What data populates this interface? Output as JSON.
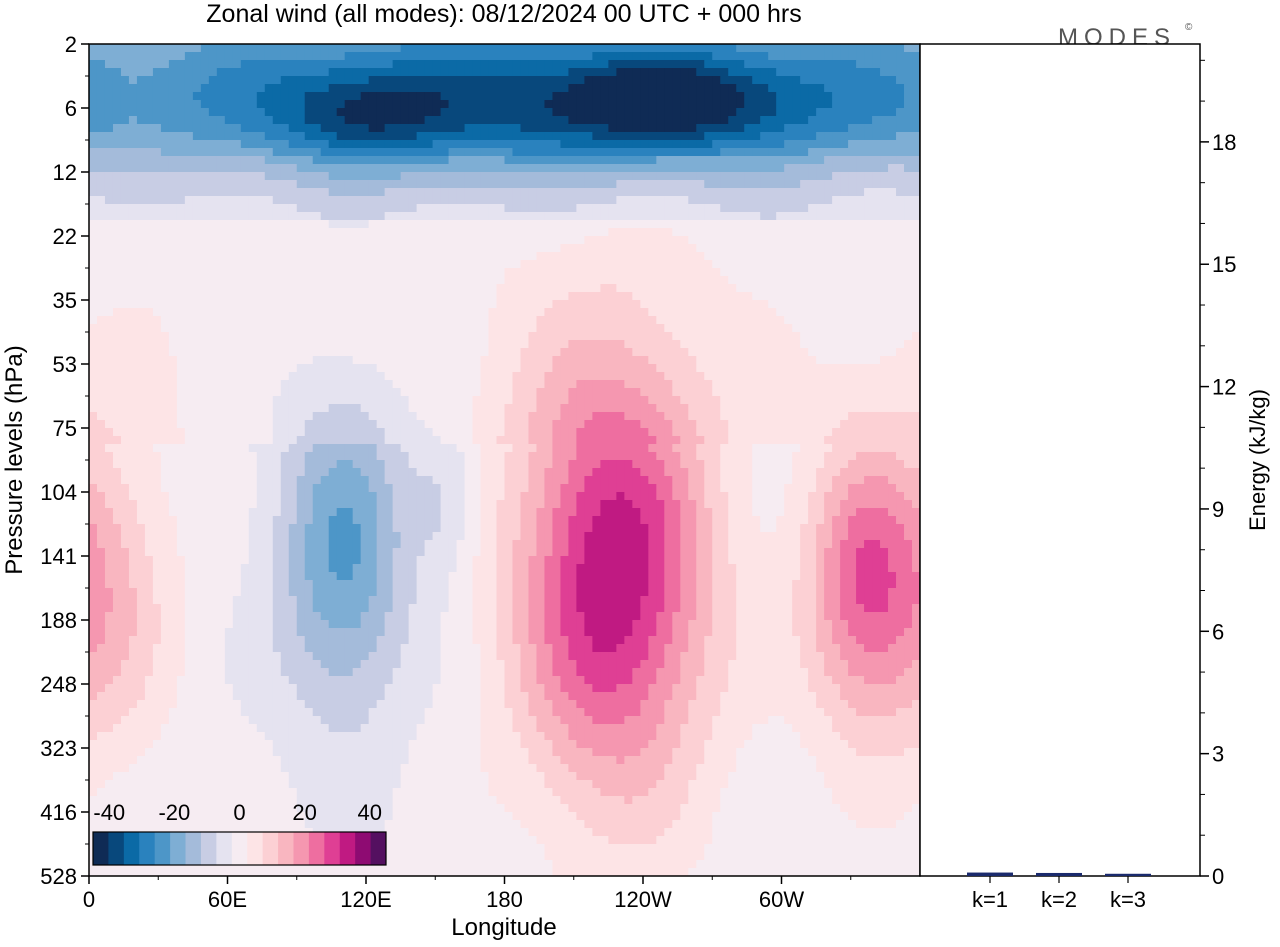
{
  "title": "Zonal wind (all modes):  08/12/2024  00 UTC  + 000 hrs",
  "logo_text": "MODES",
  "logo_mark": "©",
  "chart_data": [
    {
      "type": "heatmap",
      "xlabel": "Longitude",
      "ylabel": "Pressure levels (hPa)",
      "x_ticks": [
        "0",
        "60E",
        "120E",
        "180",
        "120W",
        "60W"
      ],
      "x_tick_degrees": [
        0,
        60,
        120,
        180,
        240,
        300
      ],
      "x_range_degrees": [
        0,
        360
      ],
      "y_ticks": [
        "2",
        "6",
        "12",
        "22",
        "35",
        "53",
        "75",
        "104",
        "141",
        "188",
        "248",
        "323",
        "416",
        "528"
      ],
      "colorbar": {
        "tick_labels": [
          "-40",
          "-20",
          "0",
          "20",
          "40"
        ],
        "tick_values": [
          -40,
          -20,
          0,
          20,
          40
        ],
        "range": [
          -45,
          45
        ],
        "step": 5,
        "colors": [
          "#0f2b55",
          "#08487c",
          "#0b6aa6",
          "#2a82be",
          "#4d96c8",
          "#7eaed4",
          "#a4bbda",
          "#c8cde4",
          "#e5e3f0",
          "#f6ecf2",
          "#fde4e6",
          "#fcd0d4",
          "#f9b6c0",
          "#f597b0",
          "#ee6ea0",
          "#df3f94",
          "#c01a82",
          "#8e0b72",
          "#541060"
        ]
      },
      "features": [
        {
          "label": "easterly band (upper stratosphere)",
          "lon": 200,
          "level_index": 1.0,
          "value": -32,
          "spread_lon": 150,
          "spread_level": 0.8
        },
        {
          "label": "easterly core",
          "lon": 250,
          "level_index": 0.9,
          "value": -14,
          "spread_lon": 30,
          "spread_level": 0.5
        },
        {
          "label": "easterly core",
          "lon": 120,
          "level_index": 1.2,
          "value": -10,
          "spread_lon": 25,
          "spread_level": 0.5
        },
        {
          "label": "westerly jet core",
          "lon": 227,
          "level_index": 8.3,
          "value": 38,
          "spread_lon": 30,
          "spread_level": 2.4
        },
        {
          "label": "westerly maximum",
          "lon": 335,
          "level_index": 8.5,
          "value": 26,
          "spread_lon": 18,
          "spread_level": 1.6
        },
        {
          "label": "westerly maximum",
          "lon": 8,
          "level_index": 8.5,
          "value": 14,
          "spread_lon": 20,
          "spread_level": 1.8
        },
        {
          "label": "easterly tongue",
          "lon": 110,
          "level_index": 8.0,
          "value": -22,
          "spread_lon": 20,
          "spread_level": 1.8
        },
        {
          "label": "easterly tongue",
          "lon": 155,
          "level_index": 7.2,
          "value": -8,
          "spread_lon": 10,
          "spread_level": 0.8
        }
      ]
    },
    {
      "type": "bar",
      "ylabel": "Energy (kJ/kg)",
      "categories": [
        "k=1",
        "k=2",
        "k=3"
      ],
      "values": [
        0.06,
        0.05,
        0.03
      ],
      "ylim": [
        0,
        20.4
      ],
      "y_ticks": [
        0,
        3,
        6,
        9,
        12,
        15,
        18
      ],
      "bar_color": "#1a2a6c"
    }
  ]
}
